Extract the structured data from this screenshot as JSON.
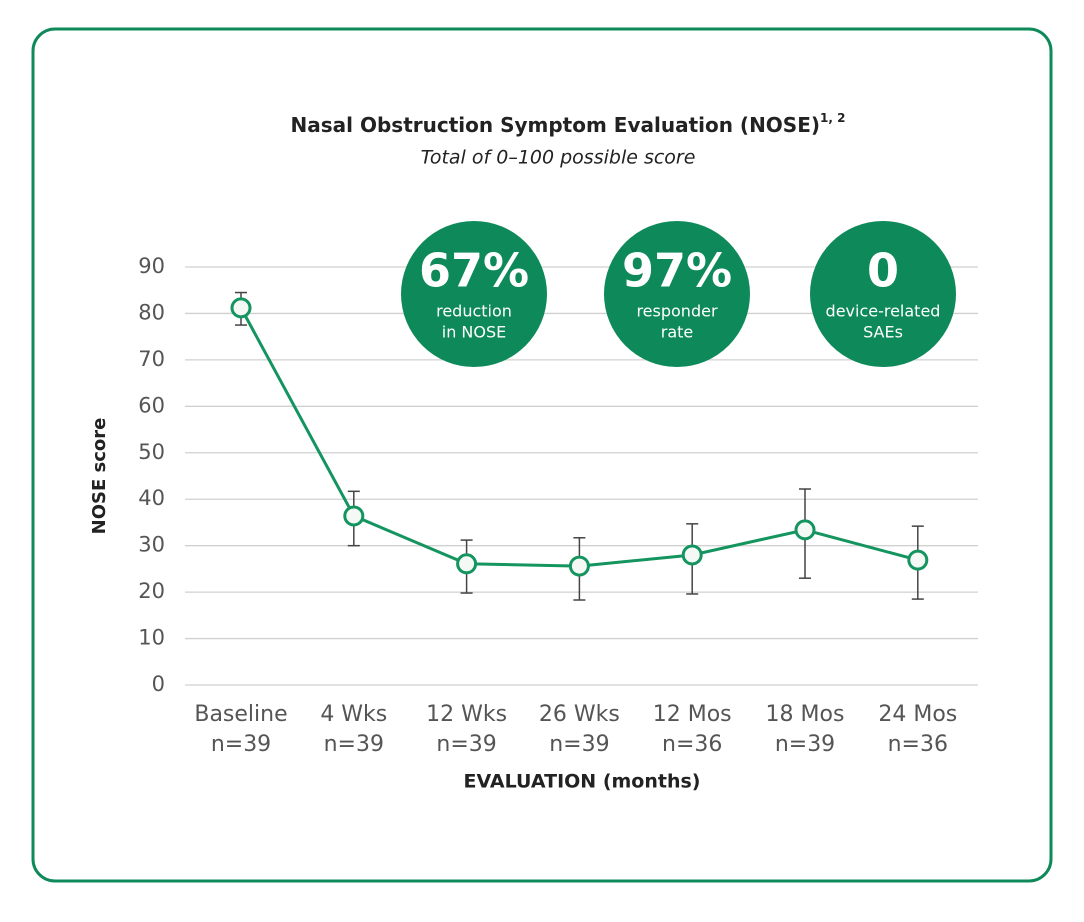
{
  "chart_data": {
    "type": "line",
    "title": "Nasal Obstruction Symptom Evaluation (NOSE)",
    "title_superscript": "1, 2",
    "subtitle": "Total of 0–100 possible score",
    "y_label": "NOSE score",
    "x_label": "EVALUATION (months)",
    "categories": [
      "Baseline",
      "4 Wks",
      "12 Wks",
      "26 Wks",
      "12 Mos",
      "18 Mos",
      "24 Mos"
    ],
    "n_labels": [
      "n=39",
      "n=39",
      "n=39",
      "n=39",
      "n=36",
      "n=39",
      "n=36"
    ],
    "values": [
      81.2,
      36.4,
      26.1,
      25.6,
      28,
      33.4,
      26.9
    ],
    "lower": [
      77.5,
      30,
      19.8,
      18.3,
      19.6,
      23,
      18.5
    ],
    "upper": [
      84.5,
      41.7,
      31.2,
      31.7,
      34.7,
      42.2,
      34.2
    ],
    "color": "#14945f",
    "ylim": [
      0,
      90
    ],
    "yticks": [
      0,
      10,
      20,
      30,
      40,
      50,
      60,
      70,
      80,
      90
    ],
    "grid": true,
    "callouts": [
      {
        "value": "67%",
        "lines": [
          "reduction",
          "in NOSE"
        ]
      },
      {
        "value": "97%",
        "lines": [
          "responder",
          "rate"
        ]
      },
      {
        "value": "0",
        "lines": [
          "device-related",
          "SAEs"
        ]
      }
    ]
  }
}
